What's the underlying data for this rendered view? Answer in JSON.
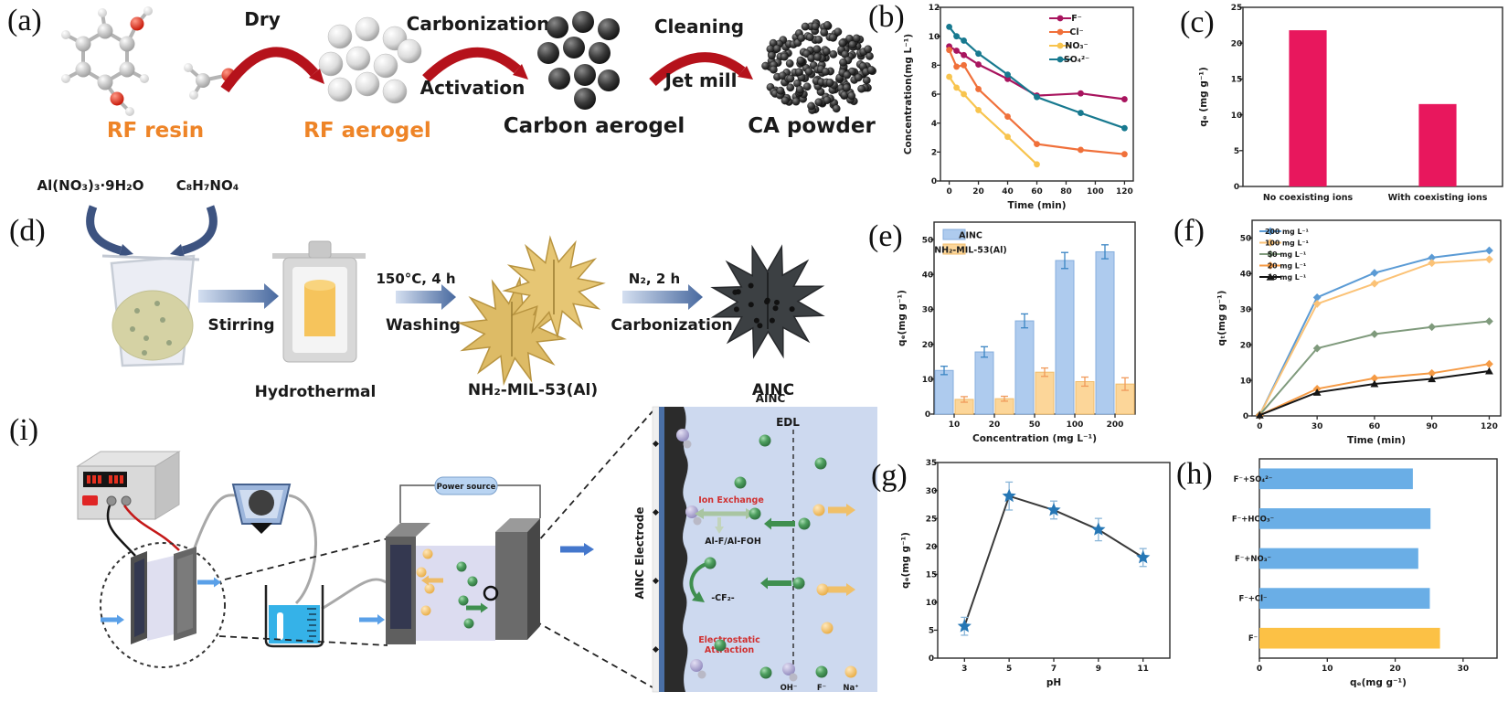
{
  "colors": {
    "accent_orange": "#ee8427",
    "arrow_red": "#b5121b",
    "arrow_blue": "#3d5380",
    "crimson_bar": "#e8175d",
    "blue_bar": "#6aaee6",
    "yellow_bar": "#fcc145",
    "inset_bg": "#cdd9ef"
  },
  "panels": {
    "a": {
      "tag": "(a)",
      "rf_resin": "RF resin",
      "dry": "Dry",
      "rf_aerogel": "RF aerogel",
      "carbonization": "Carbonization",
      "activation": "Activation",
      "carbon_aerogel": "Carbon aerogel",
      "cleaning": "Cleaning",
      "jet_mill": "Jet mill",
      "ca_powder": "CA powder"
    },
    "d": {
      "tag": "(d)",
      "reagent_1": "Al(NO₃)₃·9H₂O",
      "reagent_2": "C₈H₇NO₄",
      "stirring": "Stirring",
      "hydrothermal": "Hydrothermal",
      "conditions": "150°C, 4 h",
      "washing": "Washing",
      "mof": "NH₂-MIL-53(Al)",
      "n2": "N₂, 2 h",
      "carbonization": "Carbonization",
      "ainc": "AINC"
    },
    "i": {
      "tag": "(i)",
      "power_source": "Power source",
      "inset_title": "AINC",
      "edl": "EDL",
      "electrode": "AINC Electrode",
      "ion_exchange": "Ion Exchange",
      "al_f": "Al-F/Al-FOH",
      "cf2": "-CF₂-",
      "electrostatic_1": "Electrostatic",
      "electrostatic_2": "Attraction",
      "oh": "OH⁻",
      "f": "F⁻",
      "na": "Na⁺"
    },
    "b": {
      "tag": "(b)"
    },
    "c": {
      "tag": "(c)"
    },
    "e": {
      "tag": "(e)"
    },
    "f": {
      "tag": "(f)"
    },
    "g": {
      "tag": "(g)"
    },
    "h": {
      "tag": "(h)"
    }
  },
  "chart_data": [
    {
      "id": "b",
      "type": "line",
      "xlabel": "Time (min)",
      "ylabel": "Concentration(mg L⁻¹)",
      "xlim": [
        -6,
        126
      ],
      "ylim": [
        0,
        12
      ],
      "xticks": [
        0,
        20,
        40,
        60,
        80,
        100,
        120
      ],
      "yticks": [
        0,
        2,
        4,
        6,
        8,
        10,
        12
      ],
      "legend": {
        "pos": "top-right"
      },
      "series": [
        {
          "name": "F⁻",
          "color": "#a8145e",
          "marker": "circle",
          "points": [
            [
              0,
              9.3
            ],
            [
              5,
              9.0
            ],
            [
              10,
              8.7
            ],
            [
              20,
              8.05
            ],
            [
              40,
              7.05
            ],
            [
              60,
              5.9
            ],
            [
              90,
              6.05
            ],
            [
              120,
              5.65
            ]
          ]
        },
        {
          "name": "Cl⁻",
          "color": "#f0703a",
          "marker": "circle",
          "points": [
            [
              0,
              9.05
            ],
            [
              5,
              7.9
            ],
            [
              10,
              8.0
            ],
            [
              20,
              6.35
            ],
            [
              40,
              4.45
            ],
            [
              60,
              2.55
            ],
            [
              90,
              2.15
            ],
            [
              120,
              1.85
            ]
          ]
        },
        {
          "name": "NO₃⁻",
          "color": "#f8c44e",
          "marker": "circle",
          "points": [
            [
              0,
              7.2
            ],
            [
              5,
              6.45
            ],
            [
              10,
              6.0
            ],
            [
              20,
              4.9
            ],
            [
              40,
              3.05
            ],
            [
              60,
              1.15
            ]
          ]
        },
        {
          "name": "SO₄²⁻",
          "color": "#17798f",
          "marker": "circle",
          "points": [
            [
              0,
              10.65
            ],
            [
              5,
              10.0
            ],
            [
              10,
              9.7
            ],
            [
              20,
              8.8
            ],
            [
              40,
              7.35
            ],
            [
              60,
              5.8
            ],
            [
              90,
              4.7
            ],
            [
              120,
              3.65
            ]
          ]
        }
      ]
    },
    {
      "id": "c",
      "type": "bar",
      "ylabel": "qₑ (mg g⁻¹)",
      "categories": [
        "No coexisting ions",
        "With coexisting ions"
      ],
      "values": [
        21.8,
        11.5
      ],
      "bar_color": "#e8175d",
      "ylim": [
        0,
        25
      ],
      "yticks": [
        0,
        5,
        10,
        15,
        20,
        25
      ]
    },
    {
      "id": "e",
      "type": "groupbar",
      "xlabel": "Concentration (mg L⁻¹)",
      "ylabel": "qₑ(mg g⁻¹)",
      "categories": [
        "10",
        "20",
        "50",
        "100",
        "200"
      ],
      "ylim": [
        0,
        55
      ],
      "yticks": [
        0,
        10,
        20,
        30,
        40,
        50
      ],
      "legend": {
        "pos": "top-left"
      },
      "series": [
        {
          "name": "AINC",
          "color": "#aecbee",
          "edge": "#85aedd",
          "err_color": "#3b85c4",
          "values": [
            12.5,
            17.8,
            26.7,
            44,
            46.5
          ],
          "errors": [
            1.2,
            1.5,
            2,
            2.3,
            2
          ]
        },
        {
          "name": "NH₂-MIL-53(Al)",
          "color": "#fcd699",
          "edge": "#f0bc6c",
          "err_color": "#f09a5a",
          "values": [
            4.2,
            4.4,
            12,
            9.3,
            8.6
          ],
          "errors": [
            0.8,
            0.7,
            1.2,
            1.3,
            1.8
          ]
        }
      ]
    },
    {
      "id": "f",
      "type": "line",
      "xlabel": "Time (min)",
      "ylabel": "qₜ(mg g⁻¹)",
      "xlim": [
        -4,
        126
      ],
      "ylim": [
        0,
        55
      ],
      "xticks": [
        0,
        30,
        60,
        90,
        120
      ],
      "yticks": [
        0,
        10,
        20,
        30,
        40,
        50
      ],
      "legend": {
        "pos": "top-left"
      },
      "series": [
        {
          "name": "200 mg L⁻¹",
          "color": "#5b9bd5",
          "marker": "diamond",
          "points": [
            [
              0,
              0.3
            ],
            [
              30,
              33.3
            ],
            [
              60,
              40.2
            ],
            [
              90,
              44.5
            ],
            [
              120,
              46.5
            ]
          ]
        },
        {
          "name": "100 mg L⁻¹",
          "color": "#fbc276",
          "marker": "diamond",
          "points": [
            [
              0,
              0.3
            ],
            [
              30,
              31.5
            ],
            [
              60,
              37.2
            ],
            [
              90,
              43
            ],
            [
              120,
              44
            ]
          ]
        },
        {
          "name": "50 mg L⁻¹",
          "color": "#7f9a7c",
          "marker": "diamond",
          "points": [
            [
              0,
              0.3
            ],
            [
              30,
              19
            ],
            [
              60,
              23
            ],
            [
              90,
              25
            ],
            [
              120,
              26.6
            ]
          ]
        },
        {
          "name": "20 mg L⁻¹",
          "color": "#f59a44",
          "marker": "diamond",
          "points": [
            [
              0,
              0.2
            ],
            [
              30,
              7.6
            ],
            [
              60,
              10.6
            ],
            [
              90,
              12
            ],
            [
              120,
              14.6
            ]
          ]
        },
        {
          "name": "10 mg L⁻¹",
          "color": "#151515",
          "marker": "triangle",
          "points": [
            [
              0,
              0.2
            ],
            [
              30,
              6.6
            ],
            [
              60,
              9
            ],
            [
              90,
              10.4
            ],
            [
              120,
              12.6
            ]
          ]
        }
      ]
    },
    {
      "id": "g",
      "type": "line",
      "xlabel": "pH",
      "ylabel": "qₑ(mg g⁻¹)",
      "xlim": [
        1.8,
        12.2
      ],
      "ylim": [
        0,
        35
      ],
      "xticks": [
        3,
        5,
        7,
        9,
        11
      ],
      "yticks": [
        0,
        5,
        10,
        15,
        20,
        25,
        30,
        35
      ],
      "series": [
        {
          "name": "AINC",
          "color": "#3a3a3a",
          "marker": "star",
          "marker_color": "#2677b5",
          "err_color": "#8ab6d8",
          "points": [
            [
              3,
              5.7
            ],
            [
              5,
              29
            ],
            [
              7,
              26.5
            ],
            [
              9,
              23
            ],
            [
              11,
              18
            ]
          ],
          "errors": [
            1.6,
            2.5,
            1.6,
            2,
            1.6
          ]
        }
      ]
    },
    {
      "id": "h",
      "type": "hbar",
      "xlabel": "qₑ(mg g⁻¹)",
      "categories": [
        "F⁻+SO₄²⁻",
        "F⁻+HCO₃⁻",
        "F⁻+NO₃⁻",
        "F⁻+Cl⁻",
        "F⁻"
      ],
      "values": [
        22.6,
        25.2,
        23.4,
        25.1,
        26.6
      ],
      "colors": [
        "#6aaee6",
        "#6aaee6",
        "#6aaee6",
        "#6aaee6",
        "#fcc145"
      ],
      "xlim": [
        0,
        35
      ],
      "xticks": [
        0,
        10,
        20,
        30
      ]
    }
  ]
}
